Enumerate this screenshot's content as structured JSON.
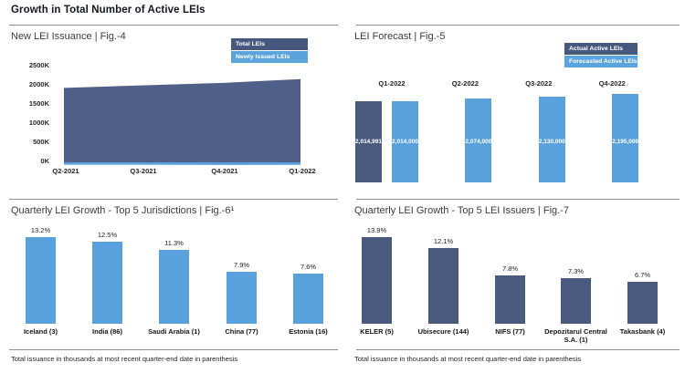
{
  "page": {
    "header": "Growth in Total Number of Active LEIs"
  },
  "colors": {
    "dark_blue_bar": "#4a5a7e",
    "dark_blue_area": "#4f5f87",
    "light_blue": "#58a1dc",
    "legend_dark": "#47587e",
    "legend_light": "#5ba3dc",
    "divider_gray": "#8f8f8f"
  },
  "chart_data": [
    {
      "id": "fig4",
      "type": "area",
      "title": "New LEI Issuance | Fig.-4",
      "x": [
        "Q2-2021",
        "Q3-2021",
        "Q4-2021",
        "Q1-2022"
      ],
      "series": [
        {
          "name": "Total LEIs",
          "values": [
            1920000,
            1985000,
            2050000,
            2150000
          ]
        },
        {
          "name": "Newly Issued LEIs",
          "values": [
            62000,
            62000,
            68000,
            65000
          ]
        }
      ],
      "y_ticks": [
        "0K",
        "500K",
        "1000K",
        "1500K",
        "2000K",
        "2500K"
      ],
      "ylim": [
        0,
        2500000
      ],
      "grid": false,
      "legend_position": "top-right"
    },
    {
      "id": "fig5",
      "type": "bar",
      "title": "LEI Forecast | Fig.-5",
      "categories": [
        "Q1-2022",
        "Q2-2022",
        "Q3-2022",
        "Q4-2022"
      ],
      "series": [
        {
          "name": "Actual Active LEIs",
          "values": [
            2014991,
            null,
            null,
            null
          ],
          "labels": [
            "2,014,991",
            null,
            null,
            null
          ]
        },
        {
          "name": "Forecasted Active LEIs",
          "values": [
            2014000,
            2074000,
            2130000,
            2195000
          ],
          "labels": [
            "2,014,000",
            "2,074,000",
            "2,130,000",
            "2,195,000"
          ]
        }
      ],
      "grid": false,
      "legend_position": "top-right"
    },
    {
      "id": "fig6",
      "type": "bar",
      "title": "Quarterly LEI Growth - Top 5 Jurisdictions | Fig.-6¹",
      "categories": [
        "Iceland (3)",
        "India (86)",
        "Saudi Arabia (1)",
        "China (77)",
        "Estonia (16)"
      ],
      "values": [
        13.2,
        12.5,
        11.3,
        7.9,
        7.6
      ],
      "labels": [
        "13.2%",
        "12.5%",
        "11.3%",
        "7.9%",
        "7.6%"
      ],
      "ylim": [
        0,
        15
      ],
      "grid": false,
      "footnote": "Total issuance in thousands at most recent quarter-end date in parenthesis"
    },
    {
      "id": "fig7",
      "type": "bar",
      "title": "Quarterly LEI Growth - Top 5 LEI Issuers | Fig.-7",
      "categories": [
        "KELER (5)",
        "Ubisecure (144)",
        "NIFS (77)",
        "Depozitarul Central S.A. (1)",
        "Takasbank (4)"
      ],
      "values": [
        13.9,
        12.1,
        7.8,
        7.3,
        6.7
      ],
      "labels": [
        "13.9%",
        "12.1%",
        "7.8%",
        "7.3%",
        "6.7%"
      ],
      "ylim": [
        0,
        15
      ],
      "grid": false,
      "footnote": "Total issuance in thousands at most recent quarter-end date in parenthesis"
    }
  ]
}
